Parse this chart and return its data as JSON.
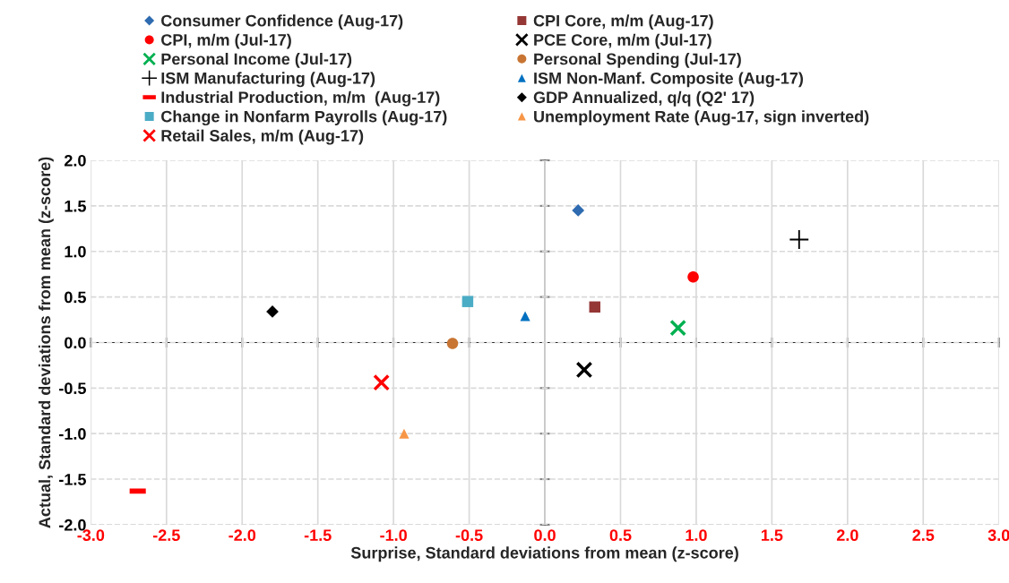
{
  "chart_data": {
    "type": "scatter",
    "xlabel": "Surprise, Standard deviations from mean (z-score)",
    "ylabel": "Actual, Standard deviations from mean (z-score)",
    "xlim": [
      -3,
      3
    ],
    "xticks": [
      {
        "value": -3,
        "label": "-3.0"
      },
      {
        "value": -2.5,
        "label": "-2.5"
      },
      {
        "value": -2,
        "label": "-2.0"
      },
      {
        "value": -1.5,
        "label": "-1.5"
      },
      {
        "value": -1,
        "label": "-1.0"
      },
      {
        "value": -0.5,
        "label": "-0.5"
      },
      {
        "value": 0,
        "label": "0.0"
      },
      {
        "value": 0.5,
        "label": "0.5"
      },
      {
        "value": 1,
        "label": "1.0"
      },
      {
        "value": 1.5,
        "label": "1.5"
      },
      {
        "value": 2,
        "label": "2.0"
      },
      {
        "value": 2.5,
        "label": "2.5"
      },
      {
        "value": 3,
        "label": "3.0"
      }
    ],
    "ylim": [
      -2,
      2
    ],
    "yticks": [
      {
        "value": -2,
        "label": "-2.0"
      },
      {
        "value": -1.5,
        "label": "-1.5"
      },
      {
        "value": -1,
        "label": "-1.0"
      },
      {
        "value": -0.5,
        "label": "-0.5"
      },
      {
        "value": 0,
        "label": "0.0"
      },
      {
        "value": 0.5,
        "label": "0.5"
      },
      {
        "value": 1,
        "label": "1.0"
      },
      {
        "value": 1.5,
        "label": "1.5"
      },
      {
        "value": 2,
        "label": "2.0"
      }
    ],
    "grid": true,
    "legend": "top",
    "series": [
      {
        "name": "Consumer Confidence (Aug-17)",
        "color": "#2e6bb0",
        "marker": "diamond",
        "x": [
          0.22
        ],
        "values": [
          1.45
        ]
      },
      {
        "name": "CPI, m/m (Jul-17)",
        "color": "#ff0000",
        "marker": "circle",
        "x": [
          0.98
        ],
        "values": [
          0.72
        ]
      },
      {
        "name": "Personal Income (Jul-17)",
        "color": "#00b050",
        "marker": "cross",
        "x": [
          0.88
        ],
        "values": [
          0.16
        ]
      },
      {
        "name": "ISM Manufacturing (Aug-17)",
        "color": "#000000",
        "marker": "plus",
        "x": [
          1.68
        ],
        "values": [
          1.13
        ]
      },
      {
        "name": "Industrial Production, m/m  (Aug-17)",
        "color": "#ff0000",
        "x": [
          -2.69
        ],
        "values": [
          -1.63
        ]
      },
      {
        "name": "Change in Nonfarm Payrolls (Aug-17)",
        "color": "#4bacc6",
        "marker": "square",
        "x": [
          -0.51
        ],
        "values": [
          0.45
        ]
      },
      {
        "name": "Retail Sales, m/m (Aug-17)",
        "color": "#ff0000",
        "marker": "cross",
        "x": [
          -1.08
        ],
        "values": [
          -0.44
        ]
      },
      {
        "name": "CPI Core, m/m (Aug-17)",
        "color": "#953735",
        "marker": "square",
        "x": [
          0.33
        ],
        "values": [
          0.39
        ]
      },
      {
        "name": "PCE Core, m/m (Jul-17)",
        "color": "#000000",
        "marker": "cross",
        "x": [
          0.26
        ],
        "values": [
          -0.3
        ]
      },
      {
        "name": "Personal Spending (Jul-17)",
        "color": "#c87533",
        "marker": "circle",
        "x": [
          -0.61
        ],
        "values": [
          -0.01
        ]
      },
      {
        "name": "ISM Non-Manf. Composite (Aug-17)",
        "color": "#0070c0",
        "marker": "triangle",
        "x": [
          -0.13
        ],
        "values": [
          0.29
        ]
      },
      {
        "name": "GDP Annualized, q/q (Q2' 17)",
        "color": "#000000",
        "marker": "diamond",
        "x": [
          -1.8
        ],
        "values": [
          0.34
        ]
      },
      {
        "name": "Unemployment Rate (Aug-17, sign inverted)",
        "color": "#f79646",
        "marker": "triangle",
        "x": [
          -0.93
        ],
        "values": [
          -1.0
        ]
      }
    ]
  }
}
